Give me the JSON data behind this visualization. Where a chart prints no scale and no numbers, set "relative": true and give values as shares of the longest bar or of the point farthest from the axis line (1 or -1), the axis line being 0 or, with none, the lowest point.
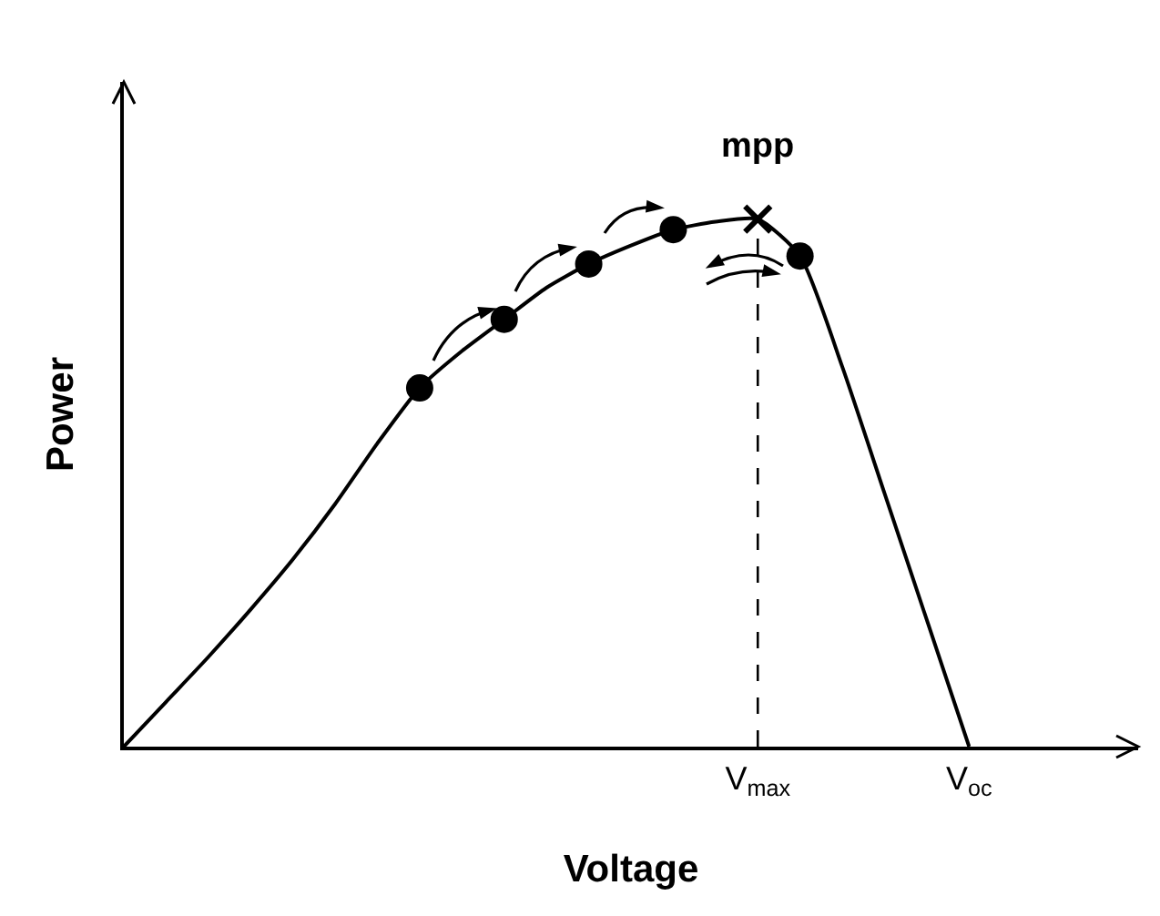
{
  "chart_data": {
    "type": "line",
    "relative": true,
    "xlabel": "Voltage",
    "ylabel": "Power",
    "categories": [
      null,
      null,
      null,
      null,
      null,
      null,
      null,
      null,
      null,
      null,
      null,
      null,
      null,
      null,
      null,
      "V$_{max}$",
      null,
      null,
      null,
      null,
      "V$_{oc}$",
      null,
      null,
      null,
      null
    ],
    "grid": false,
    "legend": false,
    "line_style": "solid",
    "series": [
      {
        "type": "line",
        "color": "#000000",
        "marker": "none",
        "values": [
          0,
          0.085,
          0.17,
          0.26,
          0.355,
          0.46,
          0.575,
          0.68,
          0.75,
          0.81,
          0.87,
          0.915,
          0.95,
          0.98,
          0.995,
          1,
          0.93,
          0.72,
          0.48,
          0.24,
          0,
          null,
          null,
          null,
          null
        ]
      },
      {
        "type": "scatter",
        "color": "#000000",
        "marker": "circle",
        "values": [
          null,
          null,
          null,
          null,
          null,
          null,
          null,
          0.68,
          null,
          0.81,
          null,
          0.915,
          null,
          0.98,
          null,
          null,
          0.93,
          null,
          null,
          null,
          null,
          null,
          null,
          null,
          null
        ]
      },
      {
        "type": "scatter",
        "color": "#000000",
        "marker": "cross",
        "values": [
          null,
          null,
          null,
          null,
          null,
          null,
          null,
          null,
          null,
          null,
          null,
          null,
          null,
          null,
          null,
          1,
          null,
          null,
          null,
          null,
          null,
          null,
          null,
          null,
          null
        ]
      }
    ],
    "ref_lines": [
      {
        "axis": "x",
        "value": "V$_{max}$",
        "label": null,
        "line_style": "dashed",
        "color": "#000000"
      }
    ],
    "annotations": [
      {
        "text": "mpp",
        "x": "V$_{max}$",
        "y": 1
      }
    ]
  }
}
